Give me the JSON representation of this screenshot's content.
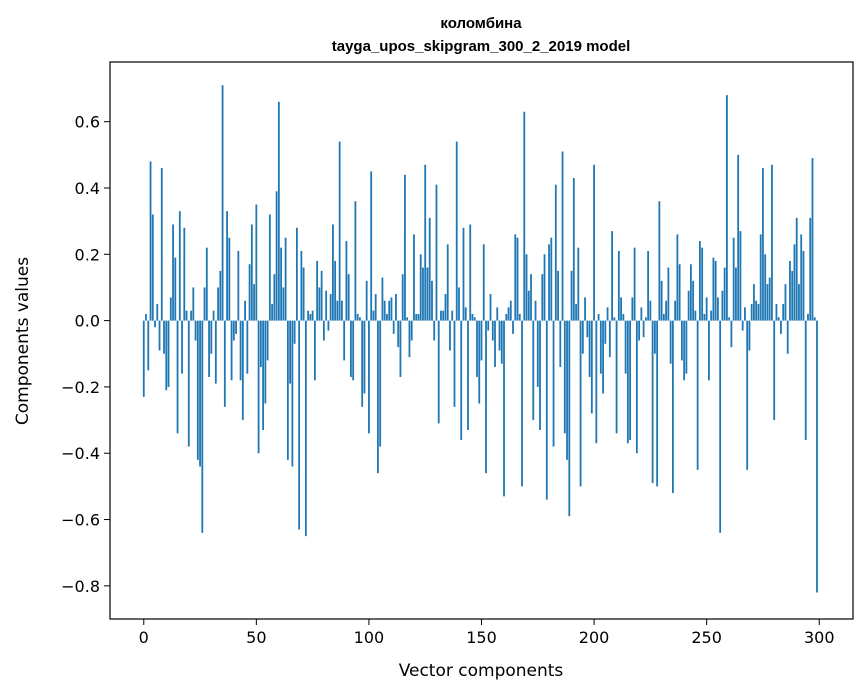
{
  "chart_data": {
    "type": "bar",
    "title": "коломбина",
    "subtitle": "tayga_upos_skipgram_300_2_2019 model",
    "xlabel": "Vector components",
    "ylabel": "Components values",
    "xlim": [
      -15,
      315
    ],
    "ylim": [
      -0.9,
      0.78
    ],
    "xticks": [
      0,
      50,
      100,
      150,
      200,
      250,
      300
    ],
    "xtick_labels": [
      "0",
      "50",
      "100",
      "150",
      "200",
      "250",
      "300"
    ],
    "yticks": [
      -0.8,
      -0.6,
      -0.4,
      -0.2,
      0.0,
      0.2,
      0.4,
      0.6
    ],
    "ytick_labels": [
      "−0.8",
      "−0.6",
      "−0.4",
      "−0.2",
      "0.0",
      "0.2",
      "0.4",
      "0.6"
    ],
    "grid": false,
    "bar_color": "#1f77b4",
    "x": [
      0,
      1,
      2,
      3,
      4,
      5,
      6,
      7,
      8,
      9,
      10,
      11,
      12,
      13,
      14,
      15,
      16,
      17,
      18,
      19,
      20,
      21,
      22,
      23,
      24,
      25,
      26,
      27,
      28,
      29,
      30,
      31,
      32,
      33,
      34,
      35,
      36,
      37,
      38,
      39,
      40,
      41,
      42,
      43,
      44,
      45,
      46,
      47,
      48,
      49,
      50,
      51,
      52,
      53,
      54,
      55,
      56,
      57,
      58,
      59,
      60,
      61,
      62,
      63,
      64,
      65,
      66,
      67,
      68,
      69,
      70,
      71,
      72,
      73,
      74,
      75,
      76,
      77,
      78,
      79,
      80,
      81,
      82,
      83,
      84,
      85,
      86,
      87,
      88,
      89,
      90,
      91,
      92,
      93,
      94,
      95,
      96,
      97,
      98,
      99,
      100,
      101,
      102,
      103,
      104,
      105,
      106,
      107,
      108,
      109,
      110,
      111,
      112,
      113,
      114,
      115,
      116,
      117,
      118,
      119,
      120,
      121,
      122,
      123,
      124,
      125,
      126,
      127,
      128,
      129,
      130,
      131,
      132,
      133,
      134,
      135,
      136,
      137,
      138,
      139,
      140,
      141,
      142,
      143,
      144,
      145,
      146,
      147,
      148,
      149,
      150,
      151,
      152,
      153,
      154,
      155,
      156,
      157,
      158,
      159,
      160,
      161,
      162,
      163,
      164,
      165,
      166,
      167,
      168,
      169,
      170,
      171,
      172,
      173,
      174,
      175,
      176,
      177,
      178,
      179,
      180,
      181,
      182,
      183,
      184,
      185,
      186,
      187,
      188,
      189,
      190,
      191,
      192,
      193,
      194,
      195,
      196,
      197,
      198,
      199,
      200,
      201,
      202,
      203,
      204,
      205,
      206,
      207,
      208,
      209,
      210,
      211,
      212,
      213,
      214,
      215,
      216,
      217,
      218,
      219,
      220,
      221,
      222,
      223,
      224,
      225,
      226,
      227,
      228,
      229,
      230,
      231,
      232,
      233,
      234,
      235,
      236,
      237,
      238,
      239,
      240,
      241,
      242,
      243,
      244,
      245,
      246,
      247,
      248,
      249,
      250,
      251,
      252,
      253,
      254,
      255,
      256,
      257,
      258,
      259,
      260,
      261,
      262,
      263,
      264,
      265,
      266,
      267,
      268,
      269,
      270,
      271,
      272,
      273,
      274,
      275,
      276,
      277,
      278,
      279,
      280,
      281,
      282,
      283,
      284,
      285,
      286,
      287,
      288,
      289,
      290,
      291,
      292,
      293,
      294,
      295,
      296,
      297,
      298,
      299
    ],
    "values": [
      -0.23,
      0.02,
      -0.15,
      0.48,
      0.32,
      -0.02,
      0.05,
      -0.09,
      0.46,
      -0.1,
      -0.21,
      -0.2,
      0.07,
      0.29,
      0.19,
      -0.34,
      0.33,
      -0.16,
      0.28,
      0.03,
      -0.38,
      0.03,
      0.1,
      -0.06,
      -0.42,
      -0.44,
      -0.64,
      0.1,
      0.22,
      -0.17,
      -0.1,
      0.03,
      -0.19,
      0.1,
      0.15,
      0.71,
      -0.26,
      0.33,
      0.25,
      -0.18,
      -0.06,
      -0.04,
      0.21,
      -0.18,
      -0.3,
      0.06,
      -0.16,
      0.17,
      0.29,
      0.11,
      0.35,
      -0.4,
      -0.14,
      -0.33,
      -0.25,
      -0.12,
      0.32,
      0.05,
      0.14,
      0.39,
      0.66,
      0.22,
      0.1,
      0.25,
      -0.42,
      -0.19,
      -0.44,
      -0.07,
      0.28,
      -0.63,
      0.21,
      0.16,
      -0.65,
      0.03,
      0.02,
      0.03,
      -0.18,
      0.18,
      0.1,
      0.15,
      -0.06,
      0.09,
      -0.03,
      0.08,
      0.29,
      0.18,
      0.06,
      0.54,
      0.06,
      -0.12,
      0.24,
      0.14,
      -0.17,
      -0.18,
      0.36,
      0.02,
      0.01,
      -0.26,
      -0.22,
      0.12,
      -0.34,
      0.45,
      0.03,
      0.08,
      -0.46,
      -0.38,
      0.13,
      0.06,
      0.02,
      0.06,
      0.07,
      -0.04,
      0.08,
      -0.08,
      -0.17,
      0.14,
      0.44,
      0.01,
      -0.11,
      -0.06,
      0.26,
      0.02,
      0.02,
      0.2,
      0.16,
      0.47,
      0.16,
      0.31,
      0.12,
      -0.06,
      0.41,
      -0.31,
      0.03,
      0.03,
      0.08,
      0.23,
      -0.09,
      0.03,
      -0.26,
      0.54,
      0.1,
      -0.36,
      0.28,
      0.04,
      -0.33,
      0.29,
      0.02,
      0.01,
      -0.17,
      -0.25,
      -0.12,
      0.23,
      -0.46,
      -0.03,
      0.08,
      -0.06,
      -0.14,
      0.04,
      -0.09,
      -0.13,
      -0.53,
      0.02,
      0.04,
      0.06,
      -0.04,
      0.26,
      0.25,
      0.02,
      -0.5,
      0.63,
      0.2,
      0.09,
      0.14,
      -0.3,
      0.06,
      -0.2,
      -0.33,
      0.14,
      0.2,
      -0.54,
      0.23,
      0.25,
      -0.38,
      0.41,
      0.15,
      -0.14,
      0.51,
      -0.34,
      -0.42,
      -0.59,
      0.15,
      0.43,
      0.05,
      0.22,
      -0.5,
      -0.1,
      0.07,
      -0.05,
      -0.17,
      -0.28,
      0.47,
      -0.37,
      0.02,
      -0.16,
      -0.22,
      -0.07,
      0.04,
      -0.11,
      0.27,
      0.01,
      -0.34,
      0.21,
      0.07,
      0.02,
      -0.16,
      -0.37,
      -0.36,
      0.07,
      0.22,
      -0.4,
      -0.06,
      0.04,
      -0.05,
      0.01,
      0.21,
      0.06,
      -0.49,
      -0.1,
      -0.5,
      0.36,
      0.12,
      0.02,
      0.06,
      0.16,
      -0.13,
      -0.52,
      0.06,
      0.26,
      0.17,
      -0.12,
      -0.18,
      -0.16,
      0.09,
      0.17,
      0.12,
      0.03,
      -0.45,
      0.24,
      0.22,
      0.02,
      0.07,
      -0.18,
      0.03,
      0.19,
      0.18,
      0.07,
      -0.64,
      0.09,
      0.16,
      0.68,
      0.01,
      -0.08,
      0.25,
      0.16,
      0.5,
      0.27,
      -0.03,
      0.04,
      -0.45,
      -0.09,
      0.05,
      0.11,
      0.06,
      0.05,
      0.26,
      0.46,
      0.2,
      0.11,
      0.13,
      0.47,
      -0.3,
      0.05,
      0.01,
      -0.04,
      0.05,
      0.11,
      -0.1,
      0.18,
      0.15,
      0.23,
      0.31,
      0.11,
      0.26,
      0.21,
      -0.36,
      0.02,
      0.31,
      0.49,
      0.01,
      -0.82
    ]
  }
}
